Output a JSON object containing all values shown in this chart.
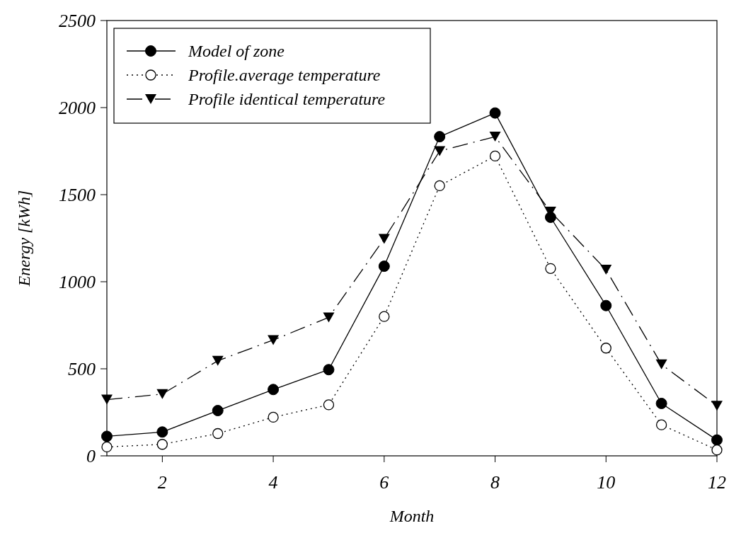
{
  "chart_data": {
    "type": "line",
    "xlabel": "Month",
    "ylabel": "Energy [kWh]",
    "x": [
      1,
      2,
      3,
      4,
      5,
      6,
      7,
      8,
      9,
      10,
      11,
      12
    ],
    "xlim": [
      1,
      12
    ],
    "xticks": [
      2,
      4,
      6,
      8,
      10,
      12
    ],
    "ylim": [
      0,
      2500
    ],
    "yticks": [
      0,
      500,
      1000,
      1500,
      2000,
      2500
    ],
    "grid": false,
    "legend": "top left",
    "series": [
      {
        "name": "Model of zone",
        "color": "#000000",
        "values": [
          112,
          137,
          260,
          381,
          495,
          1089,
          1833,
          1969,
          1370,
          863,
          301,
          91
        ],
        "marker": "circle",
        "line_style": "solid"
      },
      {
        "name": "Profile.average temperature",
        "color": "#000000",
        "values": [
          51,
          66,
          128,
          222,
          293,
          800,
          1551,
          1722,
          1076,
          619,
          178,
          34
        ],
        "marker": "circle-open",
        "line_style": "dotted"
      },
      {
        "name": "Profile identical temperature",
        "color": "#000000",
        "values": [
          323,
          355,
          546,
          665,
          795,
          1246,
          1750,
          1833,
          1402,
          1069,
          525,
          288
        ],
        "marker": "triangle-down",
        "line_style": "dashed"
      }
    ]
  }
}
